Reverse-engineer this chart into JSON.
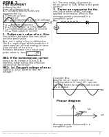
{
  "bg_color": "#ffffff",
  "pdf_bg_color": "#1e3d8f",
  "footer_text": "Saju P. John, M.Sc. Physics, NET, PhD Research Scholar, NIT Calicut",
  "footer_page": "1",
  "sine_color": "#444444",
  "text_dark": "#111111",
  "text_med": "#333333"
}
